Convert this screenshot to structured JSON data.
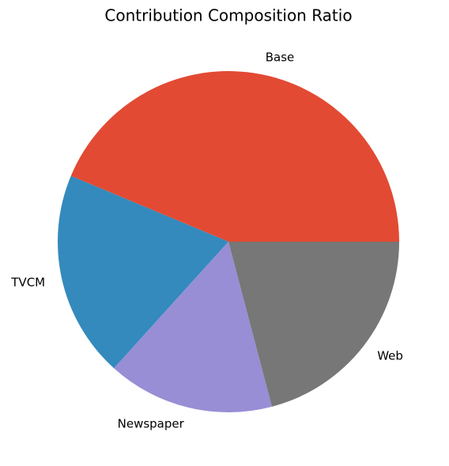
{
  "chart_data": {
    "type": "pie",
    "title": "Contribution Composition Ratio",
    "categories": [
      "Base",
      "TVCM",
      "Newspaper",
      "Web"
    ],
    "values": [
      43.7,
      19.6,
      15.8,
      20.9
    ],
    "colors": [
      "#E24A33",
      "#348ABD",
      "#988ED5",
      "#777777"
    ],
    "start_angle": 0,
    "counterclockwise": true
  }
}
